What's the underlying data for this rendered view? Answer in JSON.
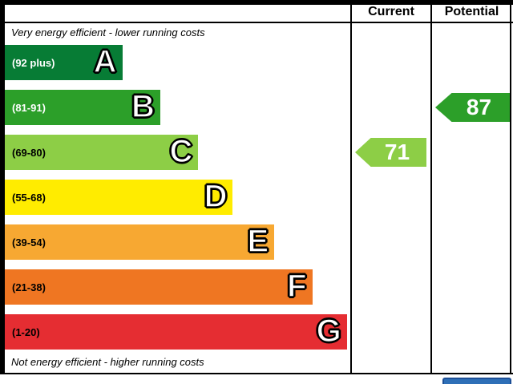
{
  "header": {
    "current_label": "Current",
    "potential_label": "Potential"
  },
  "chart_data": {
    "type": "bar",
    "subtype": "epc-energy-efficiency-rating",
    "top_caption": "Very energy efficient - lower running costs",
    "bottom_caption": "Not energy efficient - higher running costs",
    "bands": [
      {
        "letter": "A",
        "range": "(92 plus)",
        "color": "#077c35",
        "text_color": "#ffffff",
        "width_pct": 34
      },
      {
        "letter": "B",
        "range": "(81-91)",
        "color": "#2c9f29",
        "text_color": "#ffffff",
        "width_pct": 45
      },
      {
        "letter": "C",
        "range": "(69-80)",
        "color": "#8dce46",
        "text_color": "#000000",
        "width_pct": 56
      },
      {
        "letter": "D",
        "range": "(55-68)",
        "color": "#ffec00",
        "text_color": "#000000",
        "width_pct": 66
      },
      {
        "letter": "E",
        "range": "(39-54)",
        "color": "#f7a832",
        "text_color": "#000000",
        "width_pct": 78
      },
      {
        "letter": "F",
        "range": "(21-38)",
        "color": "#ef7622",
        "text_color": "#000000",
        "width_pct": 89
      },
      {
        "letter": "G",
        "range": "(1-20)",
        "color": "#e52d32",
        "text_color": "#000000",
        "width_pct": 99
      }
    ],
    "current": {
      "value": 71,
      "band": "C",
      "color": "#8dce46"
    },
    "potential": {
      "value": 87,
      "band": "B",
      "color": "#2c9f29"
    }
  }
}
